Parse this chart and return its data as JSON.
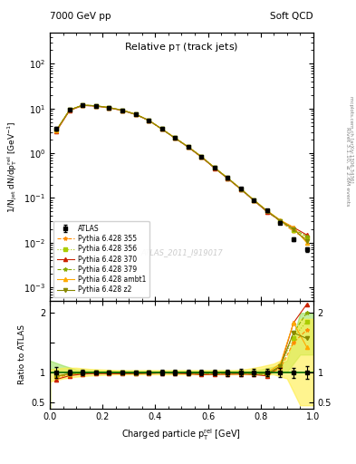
{
  "title_main": "Relative p_{T} (track jets)",
  "header_left": "7000 GeV pp",
  "header_right": "Soft QCD",
  "watermark": "ATLAS_2011_I919017",
  "right_label": "Rivet 3.1.10, ≥ 2.6M events",
  "arxiv_label": "[arXiv:1306.3436]",
  "mcplots_label": "mcplots.cern.ch",
  "xlabel": "Charged particle p_{T}^{rel} [GeV]",
  "ylabel_main": "1/N_{jet} dN/dp_{T}^{rel} [GeV^{-1}]",
  "ylabel_ratio": "Ratio to ATLAS",
  "ylim_main": [
    0.0005,
    500
  ],
  "ylim_ratio": [
    0.4,
    2.2
  ],
  "xlim": [
    0.0,
    1.0
  ],
  "x_data": [
    0.025,
    0.075,
    0.125,
    0.175,
    0.225,
    0.275,
    0.325,
    0.375,
    0.425,
    0.475,
    0.525,
    0.575,
    0.625,
    0.675,
    0.725,
    0.775,
    0.825,
    0.875,
    0.925,
    0.975
  ],
  "atlas_y": [
    3.5,
    9.5,
    12.0,
    11.5,
    10.5,
    9.2,
    7.5,
    5.5,
    3.5,
    2.2,
    1.4,
    0.85,
    0.48,
    0.28,
    0.16,
    0.09,
    0.052,
    0.028,
    0.012,
    0.007
  ],
  "atlas_yerr": [
    0.3,
    0.4,
    0.5,
    0.4,
    0.3,
    0.3,
    0.2,
    0.2,
    0.15,
    0.1,
    0.06,
    0.04,
    0.025,
    0.015,
    0.009,
    0.005,
    0.003,
    0.002,
    0.001,
    0.0007
  ],
  "py355_y": [
    3.2,
    9.2,
    11.8,
    11.4,
    10.4,
    9.1,
    7.4,
    5.45,
    3.48,
    2.18,
    1.38,
    0.83,
    0.47,
    0.275,
    0.158,
    0.088,
    0.05,
    0.03,
    0.018,
    0.012
  ],
  "py356_y": [
    3.3,
    9.3,
    11.9,
    11.5,
    10.5,
    9.15,
    7.45,
    5.47,
    3.49,
    2.19,
    1.39,
    0.84,
    0.475,
    0.278,
    0.159,
    0.089,
    0.051,
    0.031,
    0.019,
    0.013
  ],
  "py370_y": [
    3.1,
    9.0,
    11.7,
    11.3,
    10.3,
    9.0,
    7.35,
    5.42,
    3.47,
    2.17,
    1.37,
    0.82,
    0.465,
    0.272,
    0.156,
    0.087,
    0.049,
    0.031,
    0.022,
    0.015
  ],
  "py379_y": [
    3.25,
    9.25,
    11.85,
    11.45,
    10.45,
    9.12,
    7.42,
    5.44,
    3.49,
    2.19,
    1.39,
    0.84,
    0.472,
    0.277,
    0.158,
    0.088,
    0.05,
    0.031,
    0.02,
    0.014
  ],
  "pyambt1_y": [
    3.28,
    9.28,
    11.92,
    11.48,
    10.48,
    9.18,
    7.48,
    5.48,
    3.5,
    2.2,
    1.4,
    0.85,
    0.478,
    0.28,
    0.16,
    0.09,
    0.052,
    0.032,
    0.022,
    0.01
  ],
  "pyz2_y": [
    3.3,
    9.3,
    11.9,
    11.5,
    10.5,
    9.15,
    7.45,
    5.47,
    3.49,
    2.19,
    1.39,
    0.84,
    0.476,
    0.279,
    0.159,
    0.089,
    0.051,
    0.031,
    0.02,
    0.011
  ],
  "color_atlas": "#000000",
  "color_355": "#ff8c00",
  "color_356": "#aacc00",
  "color_370": "#cc2200",
  "color_379": "#88aa00",
  "color_ambt1": "#ffaa00",
  "color_z2": "#888800",
  "band_356_lo": [
    1.05,
    1.02,
    1.01,
    1.01,
    1.01,
    1.01,
    1.01,
    1.01,
    1.01,
    1.01,
    1.01,
    1.01,
    1.01,
    1.01,
    1.01,
    1.01,
    1.01,
    1.01,
    1.01,
    1.3
  ],
  "band_356_hi": [
    1.2,
    1.12,
    1.05,
    1.04,
    1.03,
    1.03,
    1.02,
    1.02,
    1.02,
    1.02,
    1.02,
    1.02,
    1.02,
    1.02,
    1.02,
    1.02,
    1.05,
    1.1,
    1.2,
    2.0
  ],
  "band_ambt1_lo": [
    0.85,
    0.9,
    0.93,
    0.95,
    0.96,
    0.97,
    0.97,
    0.97,
    0.97,
    0.97,
    0.97,
    0.97,
    0.97,
    0.97,
    0.97,
    0.97,
    0.97,
    0.97,
    0.9,
    0.45
  ],
  "band_ambt1_hi": [
    1.05,
    1.08,
    1.08,
    1.06,
    1.05,
    1.04,
    1.04,
    1.04,
    1.04,
    1.04,
    1.04,
    1.04,
    1.04,
    1.04,
    1.04,
    1.06,
    1.1,
    1.15,
    1.25,
    1.9
  ]
}
